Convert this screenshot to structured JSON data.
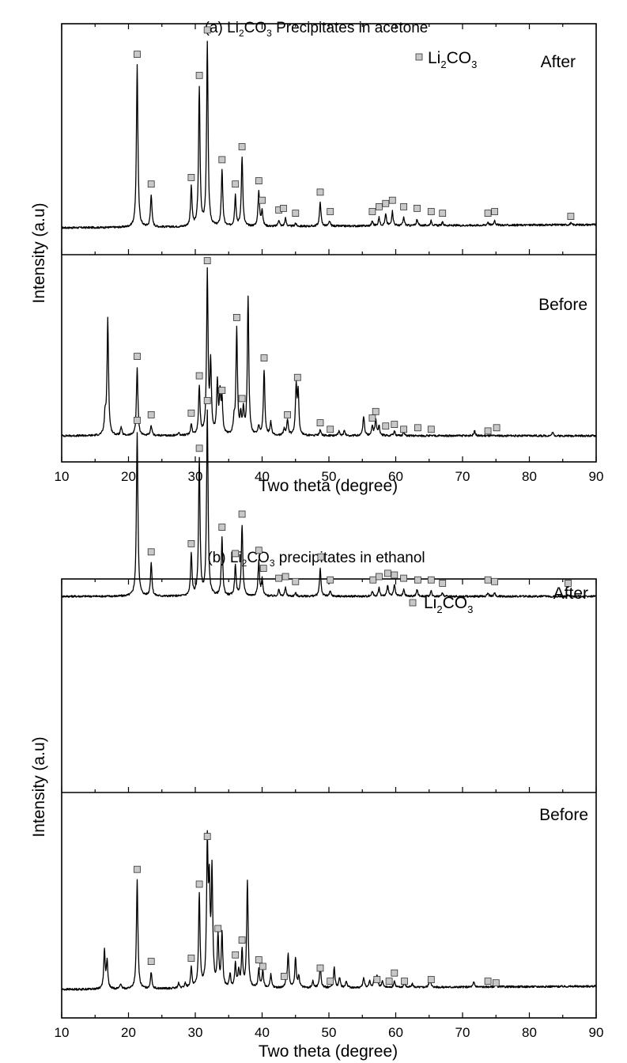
{
  "chart_data": [
    {
      "type": "line",
      "title_main": "(a) Li",
      "title_sub1": "2",
      "title_mid": "CO",
      "title_sub2": "3",
      "title_end": " Precipitates in acetone",
      "xlabel": "Two theta (degree)",
      "ylabel": "Intensity (a.u)",
      "xlim": [
        10,
        90
      ],
      "xticks": [
        "10",
        "20",
        "30",
        "40",
        "50",
        "60",
        "70",
        "80",
        "90"
      ],
      "legend": {
        "label_main": "Li",
        "label_sub1": "2",
        "label_mid": "CO",
        "label_sub2": "3",
        "marker": "square",
        "color": "#c8c8c8"
      },
      "panels": [
        {
          "name": "After",
          "peaks": [
            [
              21.3,
              1.0
            ],
            [
              23.4,
              0.2
            ],
            [
              29.4,
              0.24
            ],
            [
              30.6,
              0.85
            ],
            [
              31.8,
              1.13
            ],
            [
              34.0,
              0.35
            ],
            [
              36.0,
              0.19
            ],
            [
              37.0,
              0.43
            ],
            [
              39.5,
              0.22
            ],
            [
              40.0,
              0.1
            ],
            [
              42.5,
              0.04
            ],
            [
              43.5,
              0.05
            ],
            [
              45.0,
              0.02
            ],
            [
              48.7,
              0.15
            ],
            [
              50.1,
              0.03
            ],
            [
              56.5,
              0.03
            ],
            [
              57.5,
              0.05
            ],
            [
              58.5,
              0.07
            ],
            [
              59.5,
              0.09
            ],
            [
              61.2,
              0.05
            ],
            [
              63.2,
              0.04
            ],
            [
              65.3,
              0.03
            ],
            [
              67.0,
              0.02
            ],
            [
              73.8,
              0.02
            ],
            [
              74.8,
              0.03
            ],
            [
              86.2,
              0.01
            ]
          ],
          "markers": [
            [
              21.3,
              1.07
            ],
            [
              23.4,
              0.27
            ],
            [
              29.4,
              0.31
            ],
            [
              30.6,
              0.94
            ],
            [
              31.8,
              1.22
            ],
            [
              34.0,
              0.42
            ],
            [
              36.0,
              0.27
            ],
            [
              37.0,
              0.5
            ],
            [
              39.5,
              0.29
            ],
            [
              40.0,
              0.17
            ],
            [
              42.5,
              0.11
            ],
            [
              43.2,
              0.12
            ],
            [
              45.0,
              0.09
            ],
            [
              48.7,
              0.22
            ],
            [
              50.2,
              0.1
            ],
            [
              56.5,
              0.1
            ],
            [
              57.5,
              0.13
            ],
            [
              58.5,
              0.15
            ],
            [
              59.5,
              0.17
            ],
            [
              61.2,
              0.13
            ],
            [
              63.2,
              0.12
            ],
            [
              65.3,
              0.1
            ],
            [
              67.0,
              0.09
            ],
            [
              73.8,
              0.09
            ],
            [
              74.8,
              0.1
            ],
            [
              86.2,
              0.07
            ]
          ]
        },
        {
          "name": "Before",
          "peaks": [
            [
              16.5,
              0.12
            ],
            [
              16.9,
              0.72
            ],
            [
              18.9,
              0.05
            ],
            [
              21.3,
              0.42
            ],
            [
              23.4,
              0.06
            ],
            [
              27.5,
              0.02
            ],
            [
              29.4,
              0.07
            ],
            [
              30.6,
              0.3
            ],
            [
              31.8,
              1.0
            ],
            [
              32.3,
              0.42
            ],
            [
              33.3,
              0.32
            ],
            [
              33.7,
              0.24
            ],
            [
              34.0,
              0.2
            ],
            [
              35.8,
              0.08
            ],
            [
              36.2,
              0.65
            ],
            [
              36.8,
              0.11
            ],
            [
              37.2,
              0.15
            ],
            [
              37.9,
              0.85
            ],
            [
              39.5,
              0.05
            ],
            [
              40.3,
              0.4
            ],
            [
              41.3,
              0.08
            ],
            [
              43.3,
              0.04
            ],
            [
              43.8,
              0.1
            ],
            [
              45.1,
              0.3
            ],
            [
              45.4,
              0.25
            ],
            [
              48.7,
              0.04
            ],
            [
              51.5,
              0.03
            ],
            [
              52.3,
              0.03
            ],
            [
              55.2,
              0.12
            ],
            [
              56.5,
              0.06
            ],
            [
              57.0,
              0.1
            ],
            [
              57.5,
              0.06
            ],
            [
              59.8,
              0.03
            ],
            [
              61.2,
              0.02
            ],
            [
              71.8,
              0.03
            ],
            [
              83.5,
              0.02
            ]
          ],
          "markers": [
            [
              21.3,
              0.49
            ],
            [
              23.4,
              0.13
            ],
            [
              29.4,
              0.14
            ],
            [
              30.6,
              0.37
            ],
            [
              31.8,
              1.08
            ],
            [
              34.0,
              0.28
            ],
            [
              36.2,
              0.73
            ],
            [
              37.0,
              0.23
            ],
            [
              40.3,
              0.48
            ],
            [
              43.8,
              0.13
            ],
            [
              45.3,
              0.36
            ],
            [
              48.7,
              0.08
            ],
            [
              50.2,
              0.04
            ],
            [
              56.5,
              0.11
            ],
            [
              57.0,
              0.15
            ],
            [
              58.5,
              0.06
            ],
            [
              59.8,
              0.07
            ],
            [
              61.2,
              0.04
            ],
            [
              63.3,
              0.05
            ],
            [
              65.3,
              0.04
            ],
            [
              73.8,
              0.03
            ],
            [
              75.1,
              0.05
            ]
          ]
        }
      ]
    },
    {
      "type": "line",
      "title_main": "(b) Li",
      "title_sub1": "2",
      "title_mid": "CO",
      "title_sub2": "3",
      "title_end": " precipitates in ethanol",
      "xlabel": "Two theta (degree)",
      "ylabel": "Intensity (a.u)",
      "xlim": [
        10,
        90
      ],
      "xticks": [
        "10",
        "20",
        "30",
        "40",
        "50",
        "60",
        "70",
        "80",
        "90"
      ],
      "legend": {
        "label_main": "Li",
        "label_sub1": "2",
        "label_mid": "CO",
        "label_sub2": "3",
        "marker": "square",
        "color": "#c8c8c8"
      },
      "panels": [
        {
          "name": "After",
          "peaks": [
            [
              21.3,
              1.0
            ],
            [
              23.4,
              0.2
            ],
            [
              29.4,
              0.25
            ],
            [
              30.6,
              0.83
            ],
            [
              31.8,
              1.12
            ],
            [
              34.0,
              0.35
            ],
            [
              36.0,
              0.19
            ],
            [
              37.0,
              0.43
            ],
            [
              39.5,
              0.21
            ],
            [
              40.0,
              0.1
            ],
            [
              42.5,
              0.04
            ],
            [
              43.5,
              0.05
            ],
            [
              45.0,
              0.02
            ],
            [
              48.7,
              0.17
            ],
            [
              50.2,
              0.03
            ],
            [
              56.5,
              0.03
            ],
            [
              57.5,
              0.05
            ],
            [
              58.8,
              0.07
            ],
            [
              59.8,
              0.07
            ],
            [
              61.2,
              0.04
            ],
            [
              63.2,
              0.04
            ],
            [
              65.3,
              0.03
            ],
            [
              67.0,
              0.02
            ],
            [
              73.8,
              0.02
            ],
            [
              74.8,
              0.02
            ],
            [
              85.8,
              0.01
            ]
          ],
          "markers": [
            [
              21.3,
              1.07
            ],
            [
              23.4,
              0.27
            ],
            [
              29.4,
              0.32
            ],
            [
              30.6,
              0.9
            ],
            [
              31.8,
              1.19
            ],
            [
              34.0,
              0.42
            ],
            [
              36.0,
              0.26
            ],
            [
              37.0,
              0.5
            ],
            [
              39.5,
              0.28
            ],
            [
              40.2,
              0.17
            ],
            [
              42.5,
              0.11
            ],
            [
              43.5,
              0.12
            ],
            [
              45.0,
              0.09
            ],
            [
              48.8,
              0.24
            ],
            [
              50.2,
              0.1
            ],
            [
              56.6,
              0.1
            ],
            [
              57.5,
              0.12
            ],
            [
              58.8,
              0.14
            ],
            [
              59.8,
              0.13
            ],
            [
              61.2,
              0.11
            ],
            [
              63.3,
              0.1
            ],
            [
              65.3,
              0.1
            ],
            [
              67.0,
              0.08
            ],
            [
              73.8,
              0.1
            ],
            [
              74.8,
              0.09
            ],
            [
              85.8,
              0.08
            ]
          ]
        },
        {
          "name": "Before",
          "peaks": [
            [
              16.4,
              0.23
            ],
            [
              16.8,
              0.16
            ],
            [
              18.8,
              0.03
            ],
            [
              21.3,
              0.66
            ],
            [
              23.4,
              0.1
            ],
            [
              27.5,
              0.03
            ],
            [
              28.5,
              0.03
            ],
            [
              29.4,
              0.12
            ],
            [
              30.6,
              0.56
            ],
            [
              31.8,
              0.84
            ],
            [
              32.1,
              0.55
            ],
            [
              32.5,
              0.69
            ],
            [
              33.4,
              0.3
            ],
            [
              34.0,
              0.33
            ],
            [
              35.2,
              0.08
            ],
            [
              36.0,
              0.14
            ],
            [
              36.5,
              0.1
            ],
            [
              37.0,
              0.22
            ],
            [
              37.8,
              0.65
            ],
            [
              39.5,
              0.11
            ],
            [
              40.1,
              0.1
            ],
            [
              41.3,
              0.08
            ],
            [
              43.6,
              0.04
            ],
            [
              43.9,
              0.2
            ],
            [
              45.0,
              0.18
            ],
            [
              45.5,
              0.07
            ],
            [
              47.6,
              0.04
            ],
            [
              48.7,
              0.14
            ],
            [
              50.8,
              0.12
            ],
            [
              51.6,
              0.06
            ],
            [
              52.6,
              0.04
            ],
            [
              55.2,
              0.06
            ],
            [
              56.1,
              0.04
            ],
            [
              56.8,
              0.05
            ],
            [
              57.2,
              0.07
            ],
            [
              58.0,
              0.04
            ],
            [
              59.8,
              0.04
            ],
            [
              61.3,
              0.03
            ],
            [
              62.5,
              0.02
            ],
            [
              65.1,
              0.06
            ],
            [
              71.7,
              0.03
            ],
            [
              75.0,
              0.02
            ]
          ],
          "markers": [
            [
              21.3,
              0.73
            ],
            [
              23.4,
              0.17
            ],
            [
              29.4,
              0.19
            ],
            [
              30.6,
              0.64
            ],
            [
              31.8,
              0.93
            ],
            [
              33.4,
              0.37
            ],
            [
              36.0,
              0.21
            ],
            [
              37.0,
              0.3
            ],
            [
              39.5,
              0.18
            ],
            [
              40.1,
              0.14
            ],
            [
              43.3,
              0.08
            ],
            [
              48.7,
              0.13
            ],
            [
              50.2,
              0.05
            ],
            [
              57.2,
              0.06
            ],
            [
              59.0,
              0.05
            ],
            [
              59.8,
              0.1
            ],
            [
              61.3,
              0.05
            ],
            [
              65.3,
              0.06
            ],
            [
              73.8,
              0.05
            ],
            [
              75.0,
              0.04
            ]
          ]
        }
      ]
    }
  ]
}
